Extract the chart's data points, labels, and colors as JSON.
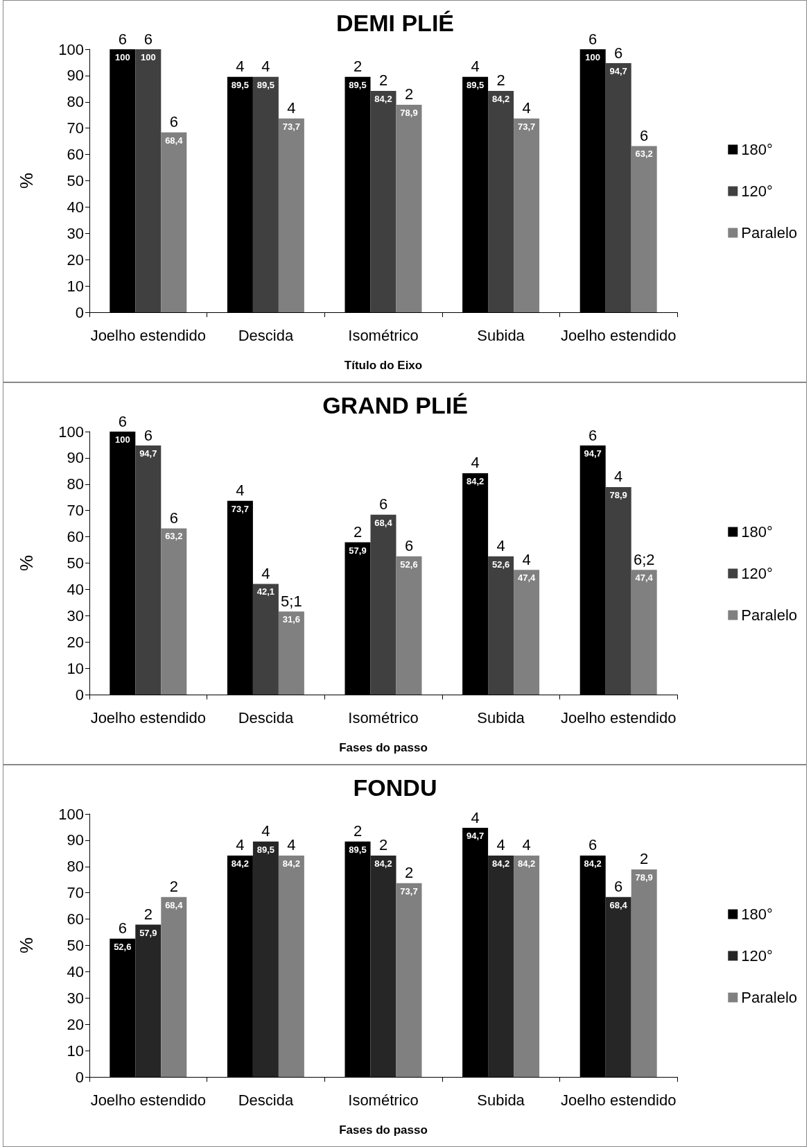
{
  "chart_data": [
    {
      "type": "bar",
      "title": "DEMI PLIÉ",
      "xlabel": "Título do Eixo",
      "ylabel": "%",
      "categories": [
        "Joelho estendido",
        "Descida",
        "Isométrico",
        "Subida",
        "Joelho estendido"
      ],
      "ylim": [
        0,
        100
      ],
      "yticks": [
        0,
        10,
        20,
        30,
        40,
        50,
        60,
        70,
        80,
        90,
        100
      ],
      "grid": false,
      "legend": "right",
      "series": [
        {
          "name": "180°",
          "color": "#000000",
          "values": [
            100,
            89.5,
            89.5,
            89.5,
            100
          ],
          "value_labels": [
            "100",
            "89,5",
            "89,5",
            "89,5",
            "100"
          ]
        },
        {
          "name": "120°",
          "color": "#404040",
          "values": [
            100,
            89.5,
            84.2,
            84.2,
            94.7
          ],
          "value_labels": [
            "100",
            "89,5",
            "84,2",
            "84,2",
            "94,7"
          ]
        },
        {
          "name": "Paralelo",
          "color": "#808080",
          "values": [
            68.4,
            73.7,
            78.9,
            73.7,
            63.2
          ],
          "value_labels": [
            "68,4",
            "73,7",
            "78,9",
            "73,7",
            "63,2"
          ]
        }
      ],
      "annotations": [
        "6",
        "6",
        "6",
        "4",
        "4",
        "4",
        "2",
        "2",
        "2",
        "4",
        "2",
        "4",
        "6",
        "6",
        "6"
      ]
    },
    {
      "type": "bar",
      "title": "GRAND PLIÉ",
      "xlabel": "Fases do passo",
      "ylabel": "%",
      "categories": [
        "Joelho estendido",
        "Descida",
        "Isométrico",
        "Subida",
        "Joelho estendido"
      ],
      "ylim": [
        0,
        100
      ],
      "yticks": [
        0,
        10,
        20,
        30,
        40,
        50,
        60,
        70,
        80,
        90,
        100
      ],
      "grid": false,
      "legend": "right",
      "series": [
        {
          "name": "180°",
          "color": "#000000",
          "values": [
            100,
            73.7,
            57.9,
            84.2,
            94.7
          ],
          "value_labels": [
            "100",
            "73,7",
            "57,9",
            "84,2",
            "94,7"
          ]
        },
        {
          "name": "120°",
          "color": "#404040",
          "values": [
            94.7,
            42.1,
            68.4,
            52.6,
            78.9
          ],
          "value_labels": [
            "94,7",
            "42,1",
            "68,4",
            "52,6",
            "78,9"
          ]
        },
        {
          "name": "Paralelo",
          "color": "#808080",
          "values": [
            63.2,
            31.6,
            52.6,
            47.4,
            47.4
          ],
          "value_labels": [
            "63,2",
            "31,6",
            "52,6",
            "47,4",
            "47,4"
          ]
        }
      ],
      "annotations": [
        "6",
        "6",
        "6",
        "4",
        "4",
        "5;1",
        "2",
        "6",
        "6",
        "4",
        "4",
        "4",
        "6",
        "4",
        "6;2"
      ]
    },
    {
      "type": "bar",
      "title": "FONDU",
      "xlabel": "Fases do passo",
      "ylabel": "%",
      "categories": [
        "Joelho estendido",
        "Descida",
        "Isométrico",
        "Subida",
        "Joelho estendido"
      ],
      "ylim": [
        0,
        100
      ],
      "yticks": [
        0,
        10,
        20,
        30,
        40,
        50,
        60,
        70,
        80,
        90,
        100
      ],
      "grid": false,
      "legend": "right",
      "series": [
        {
          "name": "180°",
          "color": "#000000",
          "values": [
            52.6,
            84.2,
            89.5,
            94.7,
            84.2
          ],
          "value_labels": [
            "52,6",
            "84,2",
            "89,5",
            "94,7",
            "84,2"
          ]
        },
        {
          "name": "120°",
          "color": "#262626",
          "values": [
            57.9,
            89.5,
            84.2,
            84.2,
            68.4
          ],
          "value_labels": [
            "57,9",
            "89,5",
            "84,2",
            "84,2",
            "68,4"
          ]
        },
        {
          "name": "Paralelo",
          "color": "#808080",
          "values": [
            68.4,
            84.2,
            73.7,
            84.2,
            78.9
          ],
          "value_labels": [
            "68,4",
            "84,2",
            "73,7",
            "84,2",
            "78,9"
          ]
        }
      ],
      "annotations": [
        "6",
        "2",
        "2",
        "4",
        "4",
        "4",
        "2",
        "2",
        "2",
        "4",
        "4",
        "4",
        "6",
        "6",
        "2"
      ]
    }
  ]
}
